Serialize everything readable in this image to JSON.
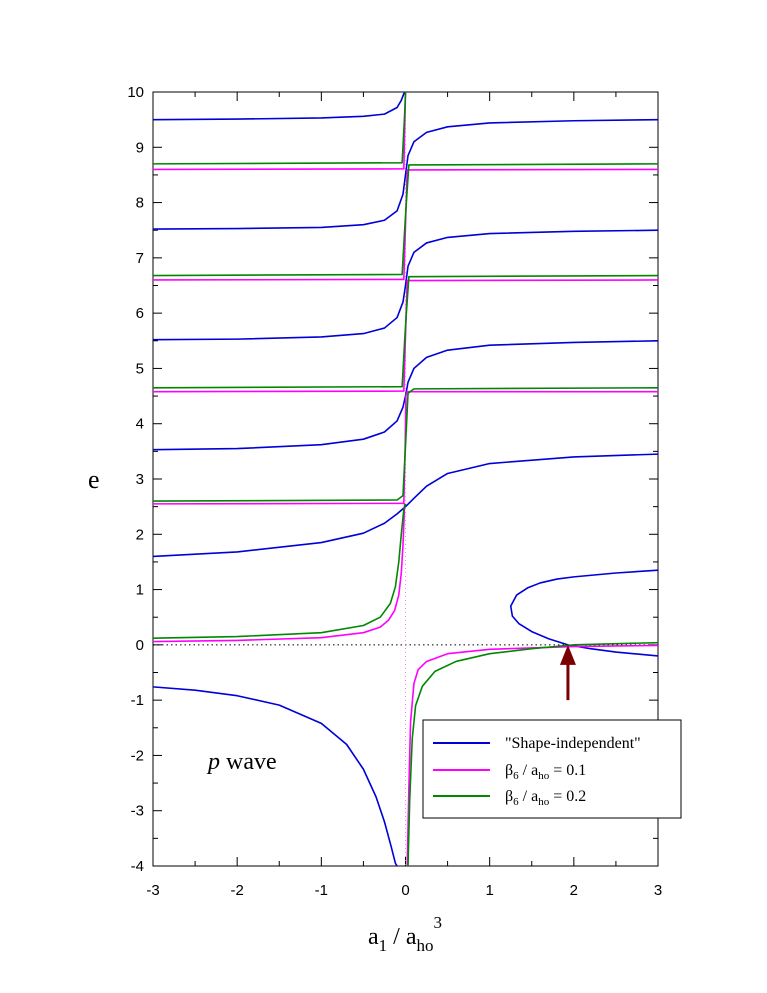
{
  "chart_data": {
    "type": "line",
    "xlabel": {
      "main": "a",
      "sub1": "1",
      "mid": " / a",
      "sub2": "ho",
      "sup": "3"
    },
    "ylabel": "e",
    "xlim": [
      -3,
      3
    ],
    "ylim": [
      -4,
      10
    ],
    "x_ticks": [
      "-3",
      "-2",
      "-1",
      "0",
      "1",
      "2",
      "3"
    ],
    "y_ticks": [
      "-4",
      "-3",
      "-2",
      "-1",
      "0",
      "1",
      "2",
      "3",
      "4",
      "5",
      "6",
      "7",
      "8",
      "9",
      "10"
    ],
    "annotation": {
      "italic": "p",
      "rest": " wave"
    },
    "reference_lines": {
      "y0_dotted": true,
      "x0_dotted": true
    },
    "arrow": {
      "x": 1.93,
      "y_tip": 0.0,
      "y_tail": -1.0,
      "color": "#7b0000"
    },
    "legend": {
      "placement": "bottom-right",
      "entries": [
        {
          "text": "\"Shape-independent\"",
          "color": "#0000d8"
        },
        {
          "base": "β",
          "sub1": "6",
          "mid": " / a",
          "sub2": "ho",
          "tail": " = 0.1",
          "color": "#ff00ff"
        },
        {
          "base": "β",
          "sub1": "6",
          "mid": " / a",
          "sub2": "ho",
          "tail": " = 0.2",
          "color": "#008800"
        }
      ]
    },
    "series": [
      {
        "color": "#0000d8",
        "branches": [
          {
            "x": [
              -3.0,
              -2.5,
              -2.0,
              -1.5,
              -1.0,
              -0.7,
              -0.5,
              -0.35,
              -0.25,
              -0.17,
              -0.12,
              -0.1
            ],
            "y": [
              -0.76,
              -0.82,
              -0.92,
              -1.09,
              -1.42,
              -1.8,
              -2.25,
              -2.75,
              -3.2,
              -3.65,
              -3.95,
              -4.0
            ]
          },
          {
            "x": [
              -3.0,
              -2.0,
              -1.0,
              -0.5,
              -0.25,
              -0.1,
              0.0,
              0.1,
              0.25,
              0.5,
              1.0,
              2.0,
              3.0
            ],
            "y": [
              1.6,
              1.68,
              1.85,
              2.02,
              2.2,
              2.37,
              2.5,
              2.65,
              2.87,
              3.1,
              3.28,
              3.4,
              3.45
            ]
          },
          {
            "x": [
              -3.0,
              -2.0,
              -1.0,
              -0.5,
              -0.25,
              -0.1,
              -0.03,
              0.0,
              0.03,
              0.1,
              0.25,
              0.5,
              1.0,
              2.0,
              3.0
            ],
            "y": [
              3.53,
              3.55,
              3.62,
              3.72,
              3.85,
              4.05,
              4.3,
              4.5,
              4.75,
              5.0,
              5.2,
              5.33,
              5.42,
              5.47,
              5.5
            ]
          },
          {
            "x": [
              -3.0,
              -2.0,
              -1.0,
              -0.5,
              -0.25,
              -0.1,
              -0.03,
              0.0,
              0.03,
              0.1,
              0.25,
              0.5,
              1.0,
              2.0,
              3.0
            ],
            "y": [
              5.52,
              5.53,
              5.57,
              5.63,
              5.73,
              5.92,
              6.2,
              6.5,
              6.85,
              7.1,
              7.27,
              7.37,
              7.44,
              7.48,
              7.5
            ]
          },
          {
            "x": [
              -3.0,
              -2.0,
              -1.0,
              -0.5,
              -0.25,
              -0.1,
              -0.03,
              0.0,
              0.03,
              0.1,
              0.25,
              0.5,
              1.0,
              2.0,
              3.0
            ],
            "y": [
              7.52,
              7.53,
              7.55,
              7.6,
              7.68,
              7.85,
              8.15,
              8.5,
              8.85,
              9.1,
              9.27,
              9.37,
              9.44,
              9.48,
              9.5
            ]
          },
          {
            "x": [
              -3.0,
              -2.0,
              -1.0,
              -0.5,
              -0.25,
              -0.1,
              -0.05,
              -0.02,
              0.0
            ],
            "y": [
              9.5,
              9.51,
              9.53,
              9.56,
              9.6,
              9.72,
              9.85,
              9.97,
              10.0
            ]
          },
          {
            "x": [
              3.0,
              2.5,
              2.0,
              1.8,
              1.6,
              1.45,
              1.32,
              1.25,
              1.27,
              1.35,
              1.5,
              1.7,
              1.93,
              2.2,
              2.5,
              3.0
            ],
            "y": [
              1.35,
              1.3,
              1.23,
              1.19,
              1.12,
              1.03,
              0.9,
              0.7,
              0.52,
              0.38,
              0.24,
              0.11,
              0.0,
              -0.07,
              -0.13,
              -0.2
            ]
          }
        ]
      },
      {
        "color": "#ff00ff",
        "branches": [
          {
            "x": [
              -3.0,
              -2.0,
              -1.0,
              -0.5,
              -0.3,
              -0.2,
              -0.13,
              -0.08,
              -0.05,
              -0.03,
              -0.01
            ],
            "y": [
              0.06,
              0.08,
              0.13,
              0.22,
              0.32,
              0.45,
              0.62,
              0.9,
              1.3,
              1.8,
              2.56
            ]
          },
          {
            "x": [
              0.02,
              0.04,
              0.06,
              0.1,
              0.15,
              0.25,
              0.5,
              1.0,
              2.0,
              3.0
            ],
            "y": [
              -4.0,
              -2.6,
              -1.4,
              -0.7,
              -0.45,
              -0.3,
              -0.16,
              -0.08,
              -0.03,
              -0.01
            ]
          },
          {
            "x": [
              -3.0,
              -0.02,
              -0.005,
              0.005,
              0.02,
              3.0
            ],
            "y": [
              2.55,
              2.56,
              3.5,
              4.5,
              4.58,
              4.58
            ]
          },
          {
            "x": [
              -3.0,
              -0.02,
              0.0,
              0.02,
              3.0
            ],
            "y": [
              4.58,
              4.59,
              5.6,
              6.59,
              6.6
            ]
          },
          {
            "x": [
              -3.0,
              -0.02,
              0.0,
              0.02,
              3.0
            ],
            "y": [
              6.6,
              6.61,
              7.6,
              8.59,
              8.6
            ]
          },
          {
            "x": [
              -3.0,
              -0.02,
              0.0
            ],
            "y": [
              8.6,
              8.61,
              10.0
            ]
          }
        ]
      },
      {
        "color": "#008800",
        "branches": [
          {
            "x": [
              -3.0,
              -2.0,
              -1.0,
              -0.5,
              -0.3,
              -0.18,
              -0.12,
              -0.08,
              -0.05,
              -0.02,
              0.0
            ],
            "y": [
              0.12,
              0.15,
              0.22,
              0.35,
              0.5,
              0.75,
              1.05,
              1.5,
              2.0,
              2.45,
              2.55
            ]
          },
          {
            "x": [
              0.03,
              0.05,
              0.08,
              0.12,
              0.2,
              0.35,
              0.6,
              1.0,
              1.5,
              2.0,
              3.0
            ],
            "y": [
              -4.0,
              -2.8,
              -1.7,
              -1.1,
              -0.75,
              -0.48,
              -0.3,
              -0.16,
              -0.07,
              0.0,
              0.04
            ]
          },
          {
            "x": [
              -3.0,
              -0.1,
              -0.03,
              0.0,
              0.03,
              0.1,
              3.0
            ],
            "y": [
              2.6,
              2.62,
              2.7,
              3.6,
              4.55,
              4.63,
              4.65
            ]
          },
          {
            "x": [
              -3.0,
              -0.04,
              -0.01,
              0.01,
              0.04,
              3.0
            ],
            "y": [
              4.65,
              4.67,
              5.5,
              6.0,
              6.66,
              6.68
            ]
          },
          {
            "x": [
              -3.0,
              -0.04,
              -0.01,
              0.01,
              0.04,
              3.0
            ],
            "y": [
              6.68,
              6.7,
              7.5,
              8.0,
              8.68,
              8.7
            ]
          },
          {
            "x": [
              -3.0,
              -0.04,
              -0.01,
              0.0
            ],
            "y": [
              8.7,
              8.72,
              9.6,
              10.0
            ]
          }
        ]
      }
    ]
  }
}
